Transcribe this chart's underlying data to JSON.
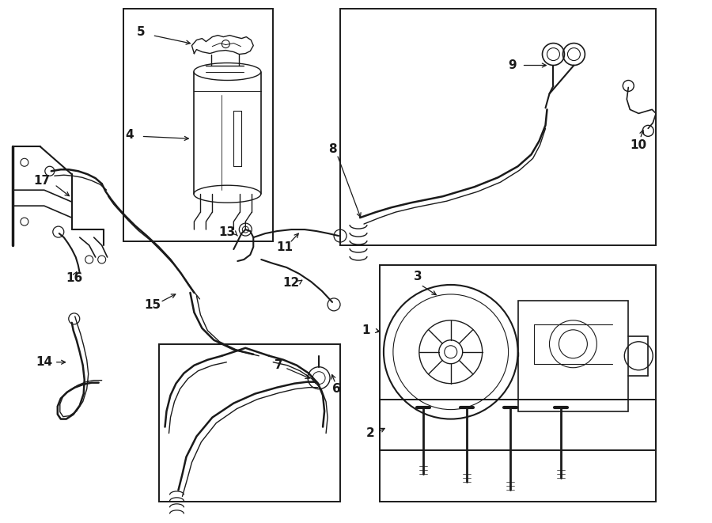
{
  "bg": "#ffffff",
  "lc": "#1a1a1a",
  "lw": 1.3,
  "figw": 9.0,
  "figh": 6.61,
  "dpi": 100,
  "boxes": {
    "res": [
      155,
      10,
      190,
      295
    ],
    "hose8": [
      430,
      10,
      400,
      300
    ],
    "pump1": [
      480,
      335,
      350,
      235
    ],
    "hose6": [
      200,
      435,
      230,
      200
    ],
    "bolts": [
      480,
      505,
      350,
      130
    ]
  },
  "labels": {
    "17": [
      55,
      220,
      115,
      250
    ],
    "4": [
      163,
      163,
      215,
      170
    ],
    "5": [
      175,
      38,
      245,
      50
    ],
    "8": [
      418,
      185,
      435,
      190
    ],
    "9": [
      645,
      70,
      645,
      83
    ],
    "10": [
      800,
      185,
      790,
      145
    ],
    "16": [
      97,
      350,
      122,
      350
    ],
    "15": [
      192,
      380,
      215,
      363
    ],
    "13": [
      295,
      295,
      315,
      300
    ],
    "11": [
      368,
      310,
      387,
      310
    ],
    "12": [
      372,
      355,
      390,
      355
    ],
    "14": [
      57,
      455,
      78,
      430
    ],
    "6": [
      428,
      490,
      420,
      465
    ],
    "3": [
      530,
      345,
      540,
      370
    ],
    "1": [
      464,
      415,
      484,
      415
    ],
    "2": [
      470,
      545,
      490,
      540
    ],
    "7": [
      355,
      465,
      373,
      453
    ]
  }
}
